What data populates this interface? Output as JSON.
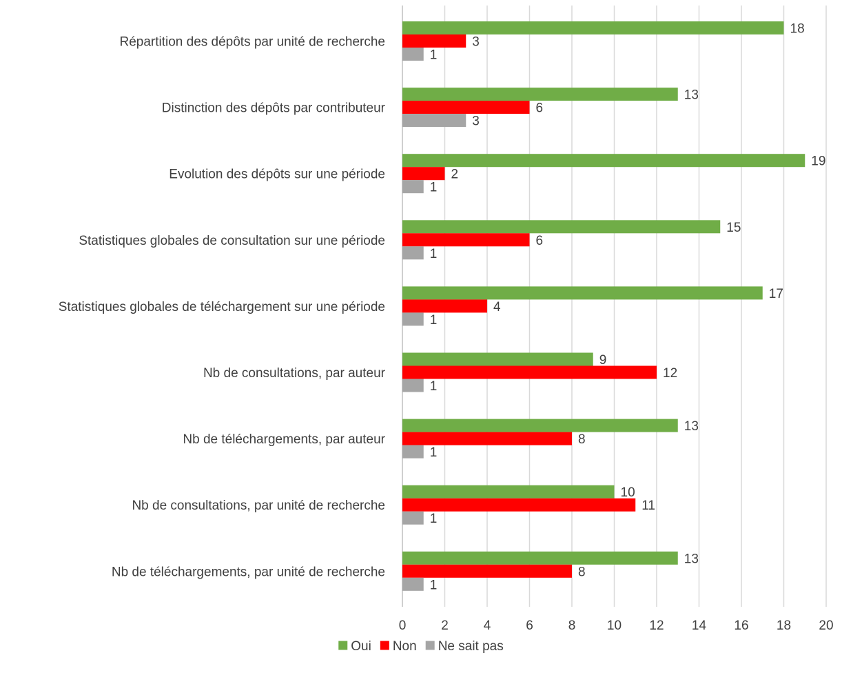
{
  "chart_data": {
    "type": "bar",
    "orientation": "horizontal",
    "categories": [
      "Répartition des dépôts par unité de recherche",
      "Distinction des dépôts par contributeur",
      "Evolution des dépôts sur une période",
      "Statistiques globales de consultation sur une période",
      "Statistiques globales de téléchargement sur une période",
      "Nb de consultations, par auteur",
      "Nb de téléchargements, par auteur",
      "Nb de consultations, par unité de recherche",
      "Nb de téléchargements, par unité de recherche"
    ],
    "series": [
      {
        "name": "Oui",
        "color": "#70ad47",
        "values": [
          18,
          13,
          19,
          15,
          17,
          9,
          13,
          10,
          13
        ]
      },
      {
        "name": "Non",
        "color": "#ff0000",
        "values": [
          3,
          6,
          2,
          6,
          4,
          12,
          8,
          11,
          8
        ]
      },
      {
        "name": "Ne sait pas",
        "color": "#a5a5a5",
        "values": [
          1,
          3,
          1,
          1,
          1,
          1,
          1,
          1,
          1
        ]
      }
    ],
    "xlim": [
      0,
      20
    ],
    "xticks": [
      "0",
      "2",
      "4",
      "6",
      "8",
      "10",
      "12",
      "14",
      "16",
      "18",
      "20"
    ],
    "grid": true,
    "data_labels": true,
    "legend_position": "bottom"
  }
}
